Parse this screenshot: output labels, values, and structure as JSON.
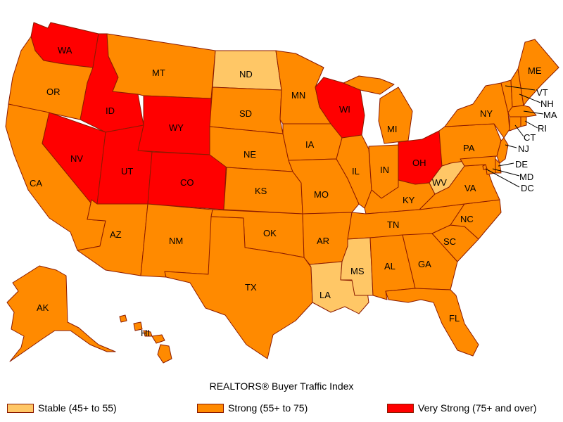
{
  "title": "REALTORS® Buyer Traffic Index",
  "colors": {
    "stable": "#FFC766",
    "strong": "#FF8A00",
    "very_strong": "#FF0000",
    "border": "#8B1A00"
  },
  "legend": [
    {
      "key": "stable",
      "label": "Stable (45+ to 55)"
    },
    {
      "key": "strong",
      "label": "Strong (55+ to 75)"
    },
    {
      "key": "very_strong",
      "label": "Very Strong (75+ and over)"
    }
  ],
  "states": {
    "WA": "very_strong",
    "OR": "strong",
    "CA": "strong",
    "ID": "very_strong",
    "NV": "very_strong",
    "MT": "strong",
    "WY": "very_strong",
    "UT": "very_strong",
    "CO": "very_strong",
    "AZ": "strong",
    "NM": "strong",
    "ND": "stable",
    "SD": "strong",
    "NE": "strong",
    "KS": "strong",
    "OK": "strong",
    "TX": "strong",
    "MN": "strong",
    "IA": "strong",
    "MO": "strong",
    "AR": "strong",
    "LA": "stable",
    "WI": "very_strong",
    "IL": "strong",
    "MI": "strong",
    "IN": "strong",
    "OH": "very_strong",
    "KY": "strong",
    "TN": "strong",
    "MS": "stable",
    "AL": "strong",
    "GA": "strong",
    "FL": "strong",
    "SC": "strong",
    "NC": "strong",
    "VA": "strong",
    "WV": "stable",
    "PA": "strong",
    "NY": "strong",
    "ME": "strong",
    "VT": "strong",
    "NH": "strong",
    "MA": "strong",
    "RI": "strong",
    "CT": "strong",
    "NJ": "strong",
    "DE": "strong",
    "MD": "strong",
    "DC": "strong",
    "AK": "strong",
    "HI": "strong"
  }
}
